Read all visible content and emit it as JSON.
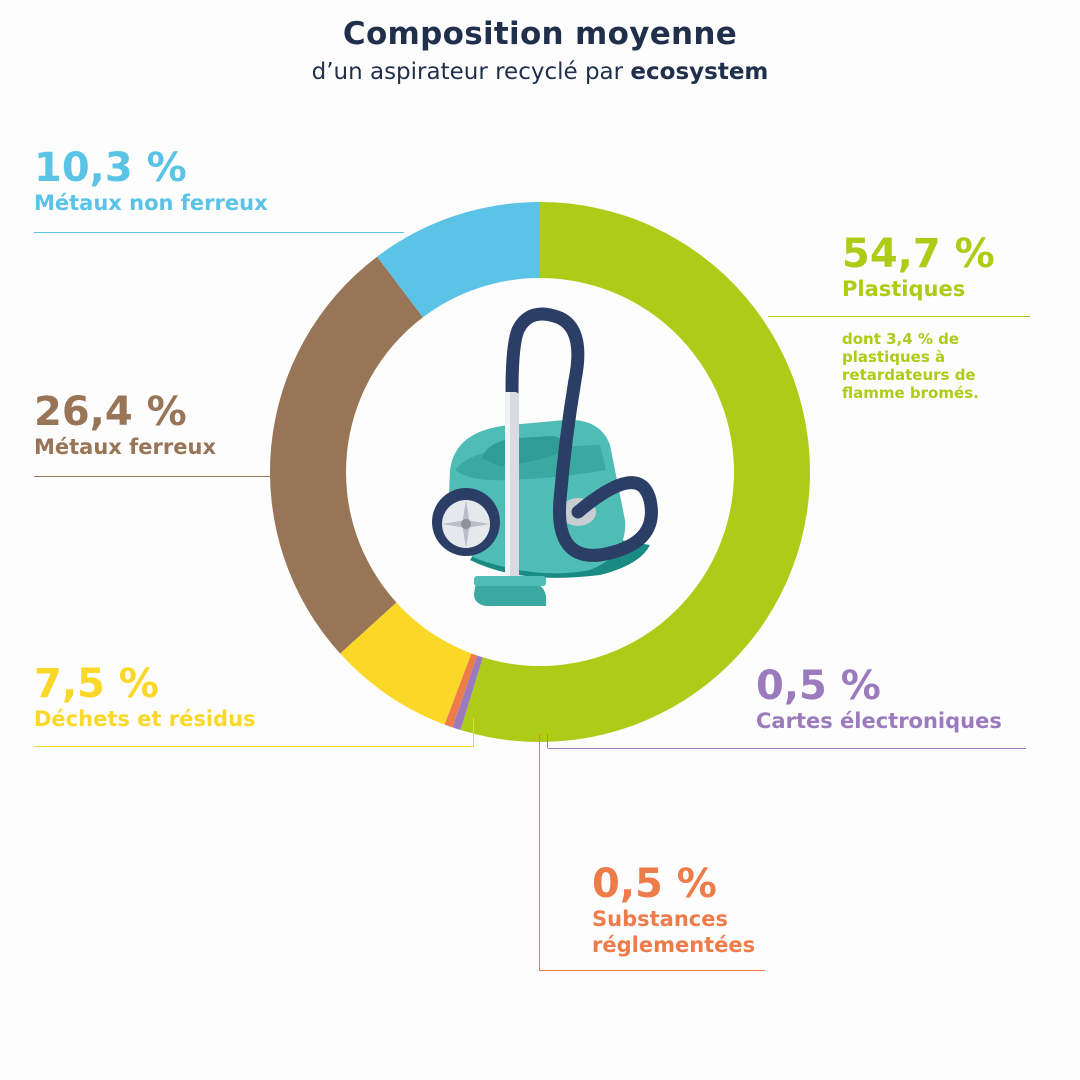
{
  "title": "Composition moyenne",
  "subtitle_prefix": "d’un aspirateur recyclé par ",
  "subtitle_brand": "ecosystem",
  "chart_data": {
    "type": "pie",
    "title": "Composition moyenne",
    "subtitle": "d’un aspirateur recyclé par ecosystem",
    "unit": "%",
    "slices": [
      {
        "label": "Plastiques",
        "value": 54.7,
        "display": "54,7 %",
        "color": "#aecb17",
        "note": "dont 3,4 % de plastiques à retardateurs de flamme bromés."
      },
      {
        "label": "Cartes électroniques",
        "value": 0.5,
        "display": "0,5 %",
        "color": "#9b7bbd"
      },
      {
        "label": "Substances réglementées",
        "value": 0.5,
        "display": "0,5 %",
        "color": "#ee7c4a"
      },
      {
        "label": "Déchets et résidus",
        "value": 7.5,
        "display": "7,5 %",
        "color": "#fbd827"
      },
      {
        "label": "Métaux ferreux",
        "value": 26.4,
        "display": "26,4 %",
        "color": "#987556"
      },
      {
        "label": "Métaux non ferreux",
        "value": 10.3,
        "display": "10,3 %",
        "color": "#5bc4e6"
      }
    ]
  },
  "labels": {
    "plastiques": {
      "value": "54,7 %",
      "name": "Plastiques",
      "note": "dont 3,4 % de plastiques à retardateurs de flamme bromés."
    },
    "cartes": {
      "value": "0,5 %",
      "name": "Cartes électroniques"
    },
    "substances": {
      "value": "0,5 %",
      "name": "Substances réglementées"
    },
    "dechets": {
      "value": "7,5 %",
      "name": "Déchets et résidus"
    },
    "ferreux": {
      "value": "26,4 %",
      "name": "Métaux ferreux"
    },
    "non_ferreux": {
      "value": "10,3 %",
      "name": "Métaux non ferreux"
    }
  },
  "illustration": {
    "icon": "vacuum-cleaner-icon",
    "body_color": "#4fbdb5",
    "hose_color": "#2b3e66"
  }
}
